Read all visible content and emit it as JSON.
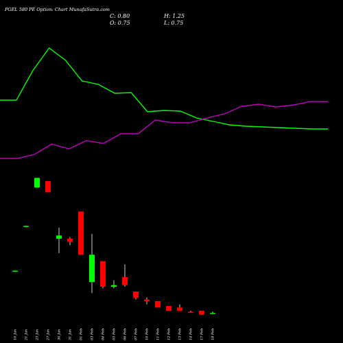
{
  "header": {
    "title": "PGEL 580 PE Option: Chart MunafaSutra.com",
    "open": "O: 0.75",
    "high": "H: 1.25",
    "low": "L: 0.75",
    "close": "C: 0.80"
  },
  "colors": {
    "background": "#000000",
    "up": "#00ff00",
    "down": "#ff0000",
    "line_green": "#00ff00",
    "line_magenta": "#c000c0",
    "text": "#ffffff"
  },
  "chart_data": {
    "type": "candlestick",
    "categories": [
      "10 Jan",
      "21 Jan",
      "23 Jan",
      "27 Jan",
      "30 Jan",
      "31 Jan",
      "01 Feb",
      "03 Feb",
      "04 Feb",
      "05 Feb",
      "06 Feb",
      "07 Feb",
      "10 Feb",
      "11 Feb",
      "12 Feb",
      "13 Feb",
      "14 Feb",
      "17 Feb",
      "18 Feb"
    ],
    "candles": [
      {
        "open": 14.0,
        "high": 14.1,
        "low": 13.9,
        "close": 14.0
      },
      {
        "open": 28.0,
        "high": 28.1,
        "low": 27.9,
        "close": 28.0
      },
      {
        "open": 40.0,
        "high": 43.0,
        "low": 40.0,
        "close": 43.0
      },
      {
        "open": 42.0,
        "high": 42.0,
        "low": 38.5,
        "close": 38.5
      },
      {
        "open": 24.0,
        "high": 27.5,
        "low": 19.5,
        "close": 25.0
      },
      {
        "open": 24.0,
        "high": 24.5,
        "low": 22.0,
        "close": 23.0
      },
      {
        "open": 32.5,
        "high": 32.5,
        "low": 19.0,
        "close": 19.0
      },
      {
        "open": 10.5,
        "high": 25.5,
        "low": 7.0,
        "close": 19.0
      },
      {
        "open": 17.0,
        "high": 17.0,
        "low": 8.5,
        "close": 9.0
      },
      {
        "open": 9.0,
        "high": 11.0,
        "low": 8.5,
        "close": 9.5
      },
      {
        "open": 12.0,
        "high": 16.0,
        "low": 9.0,
        "close": 9.5
      },
      {
        "open": 7.5,
        "high": 7.5,
        "low": 5.0,
        "close": 5.5
      },
      {
        "open": 5.0,
        "high": 5.7,
        "low": 3.5,
        "close": 4.5
      },
      {
        "open": 4.5,
        "high": 4.5,
        "low": 2.5,
        "close": 2.5
      },
      {
        "open": 3.0,
        "high": 3.0,
        "low": 1.5,
        "close": 1.5
      },
      {
        "open": 2.5,
        "high": 3.5,
        "low": 1.5,
        "close": 1.5
      },
      {
        "open": 1.2,
        "high": 1.5,
        "low": 1.0,
        "close": 1.0
      },
      {
        "open": 1.5,
        "high": 1.5,
        "low": 0.2,
        "close": 0.3
      },
      {
        "open": 0.75,
        "high": 1.25,
        "low": 0.75,
        "close": 0.8
      }
    ],
    "line_green": [
      146,
      146,
      103,
      70,
      88,
      118,
      123,
      136,
      135,
      163,
      161,
      162,
      172,
      177,
      182,
      184,
      185,
      186,
      187,
      188,
      188
    ],
    "line_magenta": [
      231,
      231,
      225,
      210,
      217,
      205,
      209,
      195,
      195,
      175,
      179,
      179,
      172,
      166,
      155,
      152,
      156,
      153,
      148,
      148
    ],
    "ylim": [
      0,
      45
    ]
  }
}
